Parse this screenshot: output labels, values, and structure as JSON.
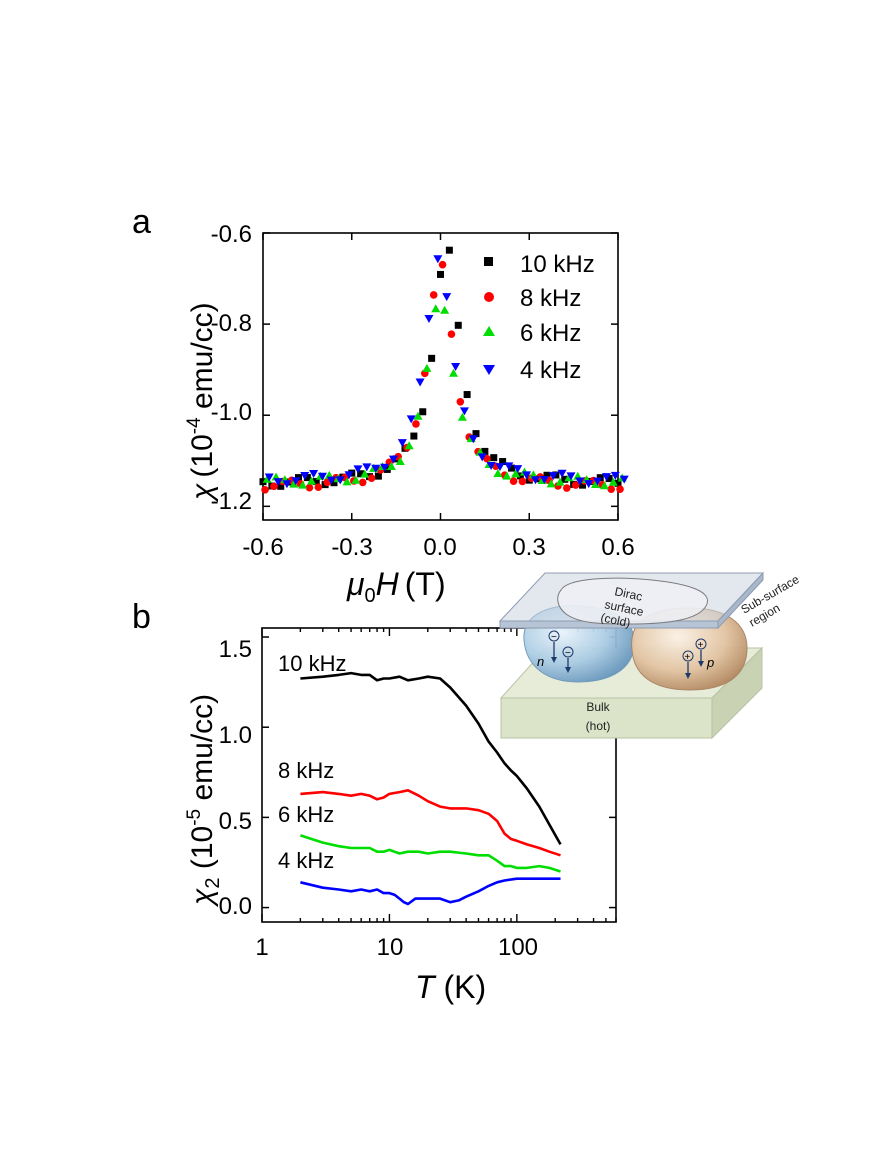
{
  "chart_data": [
    {
      "panel": "a",
      "type": "scatter",
      "xlabel_symbol": "μ",
      "xlabel_subscript": "0",
      "xlabel_var": "H",
      "xlabel_unit": "(T)",
      "ylabel_symbol": "χ",
      "ylabel_unit_pre": "(10",
      "ylabel_exp": "-4",
      "ylabel_unit_post": " emu/cc)",
      "xlim": [
        -0.6,
        0.6
      ],
      "ylim": [
        -1.23,
        -0.6
      ],
      "xticks": [
        -0.6,
        -0.3,
        0.0,
        0.3,
        0.6
      ],
      "xtick_labels": [
        "-0.6",
        "-0.3",
        "0.0",
        "0.3",
        "0.6"
      ],
      "yticks": [
        -0.6,
        -0.8,
        -1.0,
        -1.2
      ],
      "ytick_labels": [
        "-0.6",
        "-0.8",
        "-1.0",
        "-1.2"
      ],
      "legend_position": "top-right",
      "series": [
        {
          "name": "10 kHz",
          "color": "#000000",
          "marker": "square",
          "peak": -0.63,
          "shift": 0.02,
          "dy": 0.0
        },
        {
          "name": "8 kHz",
          "color": "#ff0000",
          "marker": "circle",
          "peak": -0.665,
          "shift": 0.0,
          "dy": -0.012
        },
        {
          "name": "6 kHz",
          "color": "#00dd00",
          "marker": "triangle-up",
          "peak": -0.74,
          "shift": 0.0,
          "dy": 0.005
        },
        {
          "name": "4 kHz",
          "color": "#0000ff",
          "marker": "triangle-down",
          "peak": -0.65,
          "shift": -0.005,
          "dy": 0.012
        }
      ],
      "curve_model": {
        "baseline": -1.152,
        "width_T": 0.055,
        "x_step": 0.03
      }
    },
    {
      "panel": "b",
      "type": "line",
      "xscale": "log",
      "xlabel_var": "T",
      "xlabel_unit": " (K)",
      "ylabel_symbol": "χ",
      "ylabel_subscript": "2",
      "ylabel_unit_pre": " (10",
      "ylabel_exp": "-5",
      "ylabel_unit_post": " emu/cc)",
      "xlim": [
        1,
        600
      ],
      "ylim": [
        -0.08,
        1.55
      ],
      "xticks": [
        1,
        10,
        100
      ],
      "xtick_labels": [
        "1",
        "10",
        "100"
      ],
      "yticks": [
        0.0,
        0.5,
        1.0,
        1.5
      ],
      "ytick_labels": [
        "0.0",
        "0.5",
        "1.0",
        "1.5"
      ],
      "series": [
        {
          "name": "10 kHz",
          "color": "#000000",
          "x": [
            2,
            3,
            4,
            5,
            6,
            7,
            8,
            9,
            10,
            12,
            14,
            17,
            20,
            25,
            30,
            40,
            50,
            60,
            70,
            80,
            90,
            100,
            120,
            150,
            180,
            220
          ],
          "y": [
            1.27,
            1.28,
            1.29,
            1.3,
            1.29,
            1.29,
            1.26,
            1.27,
            1.27,
            1.28,
            1.26,
            1.27,
            1.28,
            1.27,
            1.22,
            1.12,
            1.02,
            0.92,
            0.86,
            0.8,
            0.76,
            0.73,
            0.66,
            0.56,
            0.46,
            0.35
          ]
        },
        {
          "name": "8 kHz",
          "color": "#ff0000",
          "x": [
            2,
            3,
            4,
            5,
            6,
            7,
            8,
            9,
            10,
            12,
            14,
            17,
            20,
            25,
            30,
            40,
            50,
            60,
            70,
            80,
            90,
            100,
            120,
            150,
            180,
            220
          ],
          "y": [
            0.63,
            0.64,
            0.63,
            0.62,
            0.63,
            0.62,
            0.6,
            0.61,
            0.63,
            0.64,
            0.65,
            0.62,
            0.59,
            0.56,
            0.55,
            0.55,
            0.54,
            0.52,
            0.48,
            0.41,
            0.38,
            0.37,
            0.35,
            0.33,
            0.31,
            0.29
          ]
        },
        {
          "name": "6 kHz",
          "color": "#00dd00",
          "x": [
            2,
            3,
            4,
            5,
            6,
            7,
            8,
            9,
            10,
            12,
            14,
            17,
            20,
            25,
            30,
            40,
            50,
            60,
            70,
            80,
            90,
            100,
            120,
            150,
            180,
            220
          ],
          "y": [
            0.4,
            0.36,
            0.34,
            0.33,
            0.33,
            0.33,
            0.31,
            0.31,
            0.32,
            0.3,
            0.31,
            0.31,
            0.3,
            0.31,
            0.31,
            0.3,
            0.29,
            0.29,
            0.26,
            0.23,
            0.23,
            0.22,
            0.22,
            0.23,
            0.22,
            0.2
          ]
        },
        {
          "name": "4 kHz",
          "color": "#0000ff",
          "x": [
            2,
            3,
            4,
            5,
            6,
            7,
            8,
            9,
            10,
            11,
            12,
            13,
            14,
            16,
            20,
            25,
            30,
            35,
            40,
            50,
            60,
            70,
            80,
            100,
            150,
            220
          ],
          "y": [
            0.14,
            0.11,
            0.1,
            0.09,
            0.1,
            0.09,
            0.1,
            0.08,
            0.08,
            0.07,
            0.05,
            0.03,
            0.02,
            0.05,
            0.05,
            0.05,
            0.03,
            0.04,
            0.06,
            0.09,
            0.12,
            0.14,
            0.15,
            0.16,
            0.16,
            0.16
          ]
        }
      ],
      "series_tags": [
        "10 kHz",
        "8 kHz",
        "6 kHz",
        "4 kHz"
      ]
    }
  ],
  "inset": {
    "dirac_line1": "Dirac",
    "dirac_line2": "surface",
    "dirac_line3": "(cold)",
    "subsurface_line1": "Sub-surface",
    "subsurface_line2": "region",
    "bulk_line1": "Bulk",
    "bulk_line2": "(hot)",
    "n_label": "n",
    "p_label": "p",
    "minus": "−",
    "plus": "+",
    "colors": {
      "left_lobe": "#a9cbe3",
      "right_lobe": "#e2c4a2",
      "slab": "#dbe4c8",
      "plate": "#ccd6e2"
    }
  }
}
